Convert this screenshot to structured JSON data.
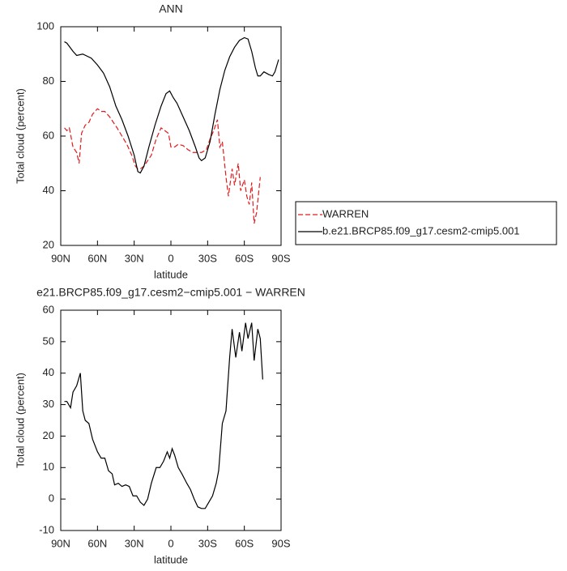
{
  "chart_data": [
    {
      "type": "line",
      "title": "ANN",
      "xlabel": "latitude",
      "ylabel": "Total cloud (percent)",
      "xlim": [
        90,
        -90
      ],
      "xticks": [
        {
          "value": 90,
          "label": "90N"
        },
        {
          "value": 60,
          "label": "60N"
        },
        {
          "value": 30,
          "label": "30N"
        },
        0,
        {
          "value": -30,
          "label": "30S"
        },
        {
          "value": -60,
          "label": "60S"
        },
        {
          "value": -90,
          "label": "90S"
        }
      ],
      "ylim": [
        20,
        100
      ],
      "yticks": [
        20,
        40,
        60,
        80,
        100
      ],
      "series": [
        {
          "name": "WARREN",
          "color": "#e41a1c",
          "line_style": "dashed",
          "x": [
            87,
            85,
            83,
            80,
            77,
            75,
            73,
            70,
            67,
            64,
            60,
            57,
            54,
            50,
            47,
            44,
            40,
            36,
            32,
            29,
            27,
            25,
            22,
            19,
            16,
            12,
            8,
            5,
            2,
            0,
            -3,
            -6,
            -10,
            -14,
            -18,
            -22,
            -25,
            -29,
            -32,
            -35,
            -38,
            -40,
            -42,
            -45,
            -47,
            -50,
            -52,
            -55,
            -57,
            -60,
            -62,
            -64,
            -66,
            -68,
            -70,
            -73
          ],
          "values": [
            63,
            62,
            63,
            56,
            54,
            50,
            61,
            64,
            65,
            68,
            70,
            69,
            69,
            67,
            65,
            63,
            60,
            57,
            53,
            49,
            48,
            48,
            49,
            51,
            53,
            59,
            63,
            62,
            61,
            56,
            56,
            57,
            56.5,
            55,
            54,
            54,
            54,
            55,
            59,
            62,
            66,
            56,
            58,
            45,
            38,
            48,
            42,
            50,
            40,
            44,
            38,
            35,
            43,
            28,
            32,
            45
          ]
        },
        {
          "name": "b.e21.BRCP85.f09_g17.cesm2-cmip5.001",
          "color": "#000000",
          "line_style": "solid",
          "x": [
            87,
            85,
            80,
            77,
            72,
            65,
            60,
            55,
            50,
            45,
            40,
            35,
            30,
            27,
            25,
            22,
            18,
            13,
            8,
            4,
            1,
            -2,
            -5,
            -10,
            -15,
            -20,
            -23,
            -25,
            -28,
            -32,
            -36,
            -40,
            -44,
            -48,
            -52,
            -56,
            -60,
            -63,
            -66,
            -69,
            -71,
            -73,
            -76,
            -80,
            -83,
            -85,
            -88
          ],
          "values": [
            94.5,
            94,
            91,
            89.5,
            90,
            88.5,
            86,
            83,
            78,
            71,
            66,
            60,
            53,
            47,
            46.5,
            49,
            56,
            64,
            71,
            75.5,
            76.5,
            74,
            72,
            67,
            62,
            56,
            52,
            51,
            52,
            58,
            68,
            77,
            84,
            89,
            92.5,
            95,
            96,
            95.5,
            91,
            85,
            82,
            82,
            83.5,
            82.5,
            82,
            83.5,
            88
          ]
        }
      ]
    },
    {
      "type": "line",
      "title": "e21.BRCP85.f09_g17.cesm2−cmip5.001 − WARREN",
      "xlabel": "latitude",
      "ylabel": "Total cloud (percent)",
      "xlim": [
        90,
        -90
      ],
      "xticks": [
        {
          "value": 90,
          "label": "90N"
        },
        {
          "value": 60,
          "label": "60N"
        },
        {
          "value": 30,
          "label": "30N"
        },
        0,
        {
          "value": -30,
          "label": "30S"
        },
        {
          "value": -60,
          "label": "60S"
        },
        {
          "value": -90,
          "label": "90S"
        }
      ],
      "ylim": [
        -10,
        60
      ],
      "yticks": [
        -10,
        0,
        10,
        20,
        30,
        40,
        50,
        60
      ],
      "series": [
        {
          "color": "#000000",
          "line_style": "solid",
          "x": [
            87,
            85,
            82,
            80,
            77,
            74,
            72,
            70,
            67,
            64,
            60,
            57,
            54,
            51,
            48,
            46,
            43,
            40,
            37,
            34,
            31,
            28,
            25,
            22,
            19,
            16,
            12,
            9,
            6,
            3,
            1,
            -1,
            -3,
            -6,
            -9,
            -13,
            -16,
            -19,
            -22,
            -25,
            -28,
            -31,
            -34,
            -37,
            -39,
            -42,
            -45,
            -48,
            -50,
            -53,
            -56,
            -58,
            -61,
            -63,
            -66,
            -68,
            -71,
            -73,
            -75
          ],
          "values": [
            31,
            31,
            29,
            34,
            36,
            40,
            28,
            25,
            24,
            19,
            15,
            13,
            13,
            9,
            8,
            4.5,
            5,
            4,
            4.5,
            4,
            1,
            1,
            -1,
            -2,
            0,
            5,
            10,
            10,
            12,
            15,
            13,
            16,
            14,
            10,
            8,
            5,
            3,
            0,
            -2.5,
            -3,
            -3,
            -1,
            1,
            5,
            9,
            24,
            28,
            45,
            54,
            45,
            53,
            47,
            56,
            51,
            56,
            44,
            54,
            51,
            38
          ]
        }
      ]
    }
  ]
}
